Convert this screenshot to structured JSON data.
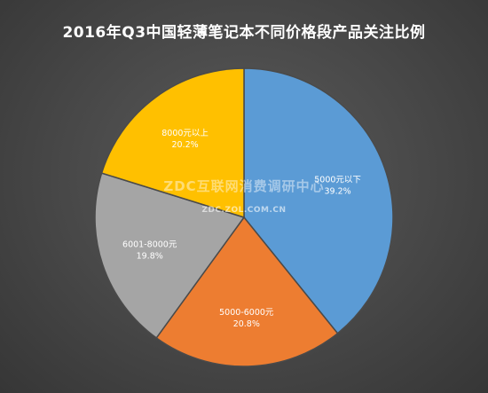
{
  "chart_data": {
    "type": "pie",
    "title": "2016年Q3中国轻薄笔记本不同价格段产品关注比例",
    "slices": [
      {
        "label": "5000元以下",
        "value": 39.2,
        "display": "39.2%",
        "color": "#5b9bd5"
      },
      {
        "label": "5000-6000元",
        "value": 20.8,
        "display": "20.8%",
        "color": "#ed7d31"
      },
      {
        "label": "6001-8000元",
        "value": 19.8,
        "display": "19.8%",
        "color": "#a5a5a5"
      },
      {
        "label": "8000元以上",
        "value": 20.2,
        "display": "20.2%",
        "color": "#ffc000"
      }
    ],
    "start_angle_deg": 0,
    "direction": "clockwise",
    "legend": "none",
    "data_labels": "inside"
  },
  "watermark": {
    "main": "ZDC互联网消费调研中心",
    "sub": "ZDC.ZOL.COM.CN"
  }
}
